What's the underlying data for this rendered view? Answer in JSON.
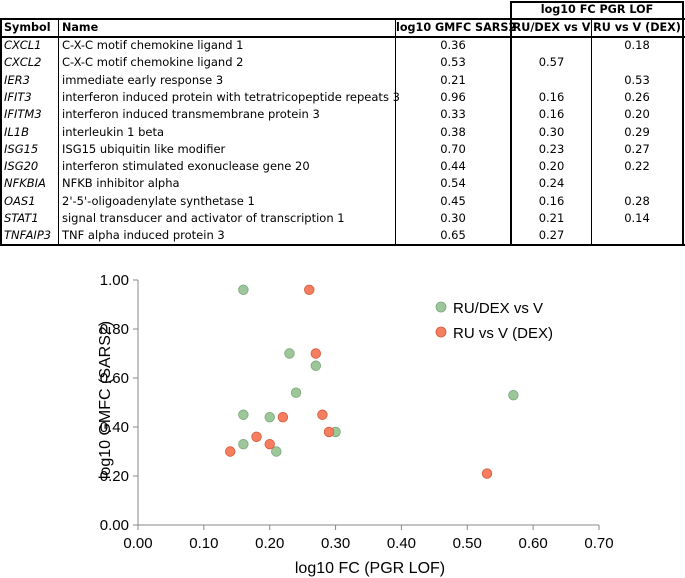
{
  "table": {
    "group_header": "log10 FC PGR LOF",
    "columns": [
      "Symbol",
      "Name",
      "log10 GMFC SARS2",
      "RU/DEX vs V",
      "RU vs V (DEX)"
    ],
    "rows": [
      {
        "symbol": "CXCL1",
        "name": "C-X-C motif chemokine ligand 1",
        "gmfc": "0.36",
        "ru_dex": "",
        "ru_v_dex": "0.18"
      },
      {
        "symbol": "CXCL2",
        "name": "C-X-C motif chemokine ligand 2",
        "gmfc": "0.53",
        "ru_dex": "0.57",
        "ru_v_dex": ""
      },
      {
        "symbol": "IER3",
        "name": "immediate early response 3",
        "gmfc": "0.21",
        "ru_dex": "",
        "ru_v_dex": "0.53"
      },
      {
        "symbol": "IFIT3",
        "name": "interferon induced protein with tetratricopeptide repeats 3",
        "gmfc": "0.96",
        "ru_dex": "0.16",
        "ru_v_dex": "0.26"
      },
      {
        "symbol": "IFITM3",
        "name": "interferon induced transmembrane protein 3",
        "gmfc": "0.33",
        "ru_dex": "0.16",
        "ru_v_dex": "0.20"
      },
      {
        "symbol": "IL1B",
        "name": "interleukin 1 beta",
        "gmfc": "0.38",
        "ru_dex": "0.30",
        "ru_v_dex": "0.29"
      },
      {
        "symbol": "ISG15",
        "name": "ISG15 ubiquitin like modifier",
        "gmfc": "0.70",
        "ru_dex": "0.23",
        "ru_v_dex": "0.27"
      },
      {
        "symbol": "ISG20",
        "name": "interferon stimulated exonuclease gene 20",
        "gmfc": "0.44",
        "ru_dex": "0.20",
        "ru_v_dex": "0.22"
      },
      {
        "symbol": "NFKBIA",
        "name": "NFKB inhibitor alpha",
        "gmfc": "0.54",
        "ru_dex": "0.24",
        "ru_v_dex": ""
      },
      {
        "symbol": "OAS1",
        "name": "2'-5'-oligoadenylate synthetase 1",
        "gmfc": "0.45",
        "ru_dex": "0.16",
        "ru_v_dex": "0.28"
      },
      {
        "symbol": "STAT1",
        "name": "signal transducer and activator of transcription 1",
        "gmfc": "0.30",
        "ru_dex": "0.21",
        "ru_v_dex": "0.14"
      },
      {
        "symbol": "TNFAIP3",
        "name": "TNF alpha induced protein 3",
        "gmfc": "0.65",
        "ru_dex": "0.27",
        "ru_v_dex": ""
      }
    ]
  },
  "chart_data": {
    "type": "scatter",
    "title": "",
    "xlabel": "log10 FC (PGR LOF)",
    "ylabel": "log10 GMFC (SARS2)",
    "xlim": [
      0,
      0.7
    ],
    "ylim": [
      0,
      1.0
    ],
    "xticks": [
      "0.00",
      "0.10",
      "0.20",
      "0.30",
      "0.40",
      "0.50",
      "0.60",
      "0.70"
    ],
    "yticks": [
      "0.00",
      "0.20",
      "0.40",
      "0.60",
      "0.80",
      "1.00"
    ],
    "legend_position": "top-right",
    "series": [
      {
        "name": "RU/DEX vs V",
        "color": "#9dc79a",
        "stroke": "#79a878",
        "points": [
          {
            "x": 0.57,
            "y": 0.53
          },
          {
            "x": 0.16,
            "y": 0.96
          },
          {
            "x": 0.16,
            "y": 0.33
          },
          {
            "x": 0.3,
            "y": 0.38
          },
          {
            "x": 0.23,
            "y": 0.7
          },
          {
            "x": 0.2,
            "y": 0.44
          },
          {
            "x": 0.24,
            "y": 0.54
          },
          {
            "x": 0.16,
            "y": 0.45
          },
          {
            "x": 0.21,
            "y": 0.3
          },
          {
            "x": 0.27,
            "y": 0.65
          }
        ]
      },
      {
        "name": "RU vs V (DEX)",
        "color": "#f47e5f",
        "stroke": "#d65a3c",
        "points": [
          {
            "x": 0.18,
            "y": 0.36
          },
          {
            "x": 0.53,
            "y": 0.21
          },
          {
            "x": 0.26,
            "y": 0.96
          },
          {
            "x": 0.2,
            "y": 0.33
          },
          {
            "x": 0.29,
            "y": 0.38
          },
          {
            "x": 0.27,
            "y": 0.7
          },
          {
            "x": 0.22,
            "y": 0.44
          },
          {
            "x": 0.28,
            "y": 0.45
          },
          {
            "x": 0.14,
            "y": 0.3
          }
        ]
      }
    ]
  }
}
